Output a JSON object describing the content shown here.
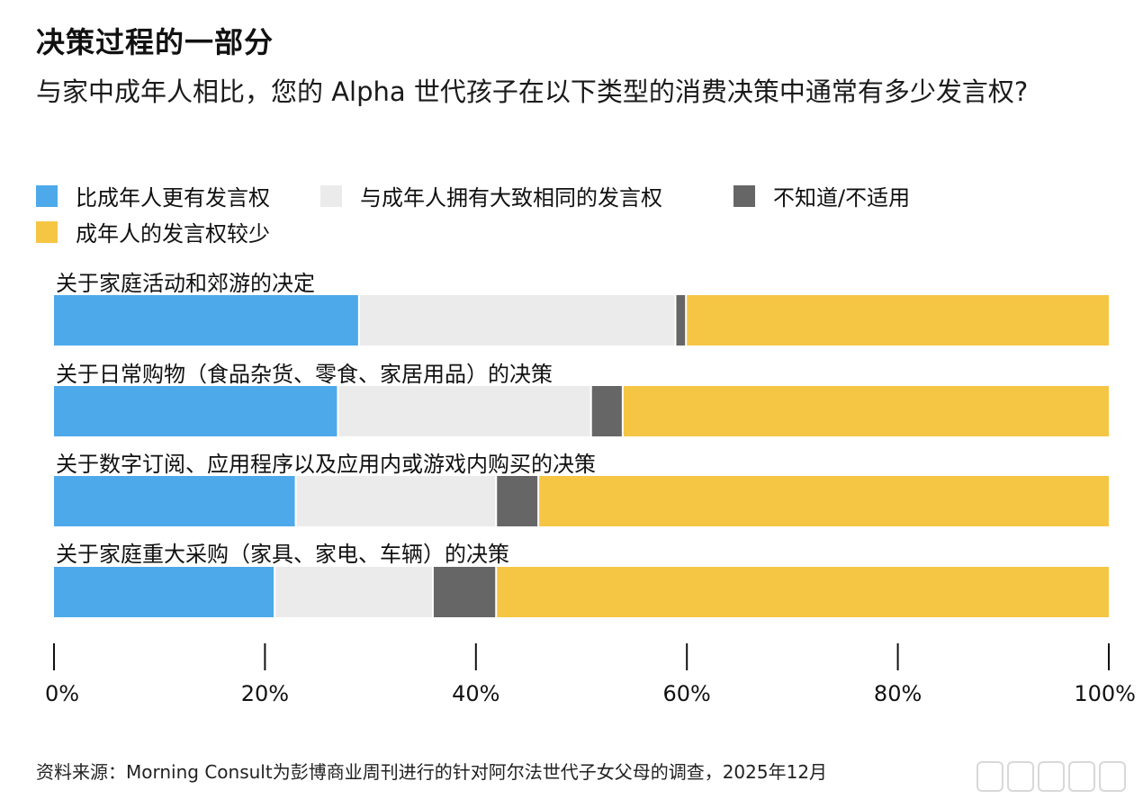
{
  "title": "决策过程的一部分",
  "subtitle": "与家中成年人相比，您的 Alpha 世代孩子在以下类型的消费决策中通常有多少发言权?",
  "footnote": "资料来源：Morning Consult为彭博商业周刊进行的针对阿尔法世代子女父母的调查，2025年12月",
  "colors": {
    "more": "#4da9ea",
    "same": "#ebebeb",
    "dontknow": "#666666",
    "less": "#f5c544"
  },
  "chart_data": {
    "type": "bar",
    "orientation": "horizontal",
    "stacked": true,
    "categories": [
      "关于家庭活动和郊游的决定",
      "关于日常购物（食品杂货、零食、家居用品）的决策",
      "关于数字订阅、应用程序以及应用内或游戏内购买的决策",
      "关于家庭重大采购（家具、家电、车辆）的决策"
    ],
    "series": [
      {
        "name": "比成年人更有发言权",
        "color_key": "more",
        "values": [
          29,
          27,
          23,
          21
        ]
      },
      {
        "name": "与成年人拥有大致相同的发言权",
        "color_key": "same",
        "values": [
          30,
          24,
          19,
          15
        ]
      },
      {
        "name": "不知道/不适用",
        "color_key": "dontknow",
        "values": [
          1,
          3,
          4,
          6
        ]
      },
      {
        "name": "成年人的发言权较少",
        "color_key": "less",
        "values": [
          40,
          46,
          54,
          58
        ]
      }
    ],
    "xlim": [
      0,
      100
    ],
    "xticks": [
      "0%",
      "20%",
      "40%",
      "60%",
      "80%",
      "100%"
    ],
    "legend_position": "top"
  }
}
